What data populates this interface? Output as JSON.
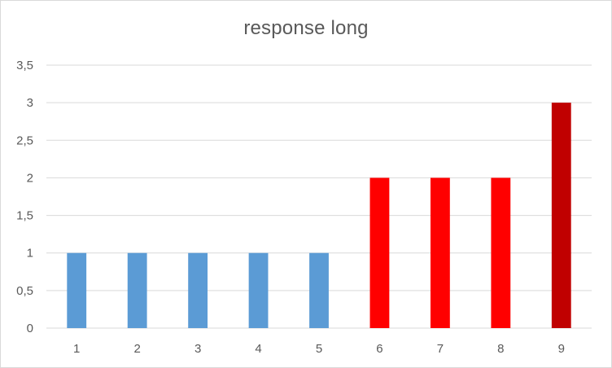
{
  "chart_data": {
    "type": "bar",
    "title": "response long",
    "xlabel": "",
    "ylabel": "",
    "categories": [
      "1",
      "2",
      "3",
      "4",
      "5",
      "6",
      "7",
      "8",
      "9"
    ],
    "values": [
      1,
      1,
      1,
      1,
      1,
      2,
      2,
      2,
      3
    ],
    "bar_colors": [
      "#5b9bd5",
      "#5b9bd5",
      "#5b9bd5",
      "#5b9bd5",
      "#5b9bd5",
      "#ff0000",
      "#ff0000",
      "#ff0000",
      "#c00000"
    ],
    "ylim": [
      0,
      3.5
    ],
    "yticks": [
      "0",
      "0,5",
      "1",
      "1,5",
      "2",
      "2,5",
      "3",
      "3,5"
    ],
    "grid": true,
    "legend": "none",
    "colors": {
      "gridline": "#d9d9d9",
      "axis_line": "#d9d9d9",
      "text": "#595959"
    }
  }
}
